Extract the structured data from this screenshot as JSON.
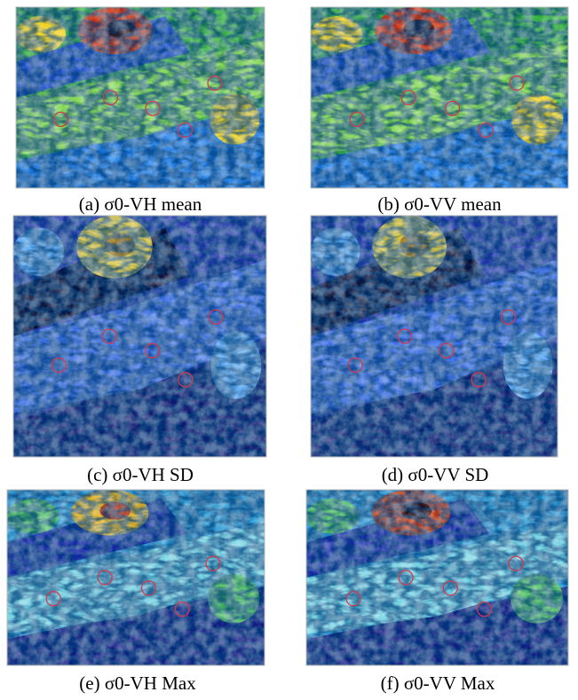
{
  "figure": {
    "panels": [
      {
        "caption": "(a) σ0-VH mean"
      },
      {
        "caption": "(b) σ0-VV mean"
      },
      {
        "caption": "(c) σ0-VH SD"
      },
      {
        "caption": "(d) σ0-VV SD"
      },
      {
        "caption": "(e) σ0-VH Max"
      },
      {
        "caption": "(f) σ0-VV Max"
      }
    ]
  }
}
